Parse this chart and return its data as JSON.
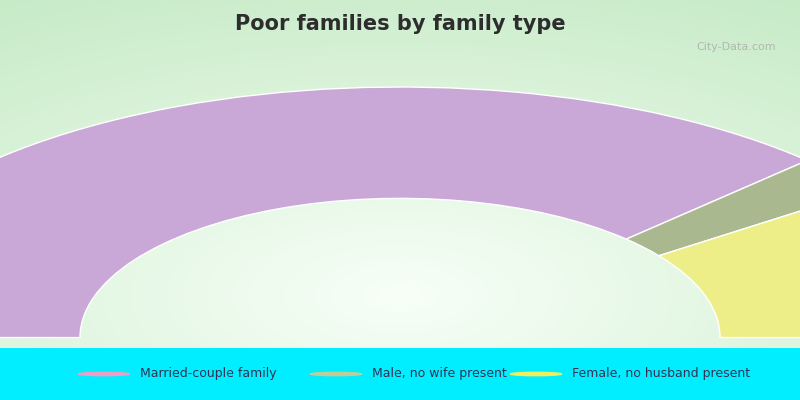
{
  "title": "Poor families by family type",
  "title_color": "#2d2d2d",
  "title_fontsize": 15,
  "bg_cyan": "#00EEFF",
  "segments": [
    {
      "label": "Married-couple family",
      "value": 75,
      "color": "#c9a8d8"
    },
    {
      "label": "Male, no wife present",
      "value": 5,
      "color": "#aab890"
    },
    {
      "label": "Female, no husband present",
      "value": 20,
      "color": "#eeee88"
    }
  ],
  "legend_marker_colors": [
    "#e8a0c8",
    "#c0cc98",
    "#eeee60"
  ],
  "legend_text_color": "#333355",
  "watermark": "City-Data.com",
  "watermark_color": "#aaaaaa"
}
